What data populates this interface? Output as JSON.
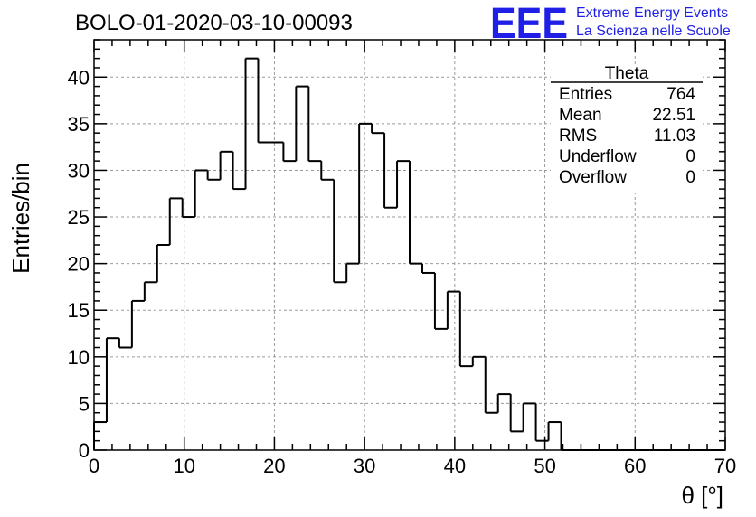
{
  "header": {
    "run_title": "BOLO-01-2020-03-10-00093",
    "logo_text": "EEE",
    "logo_line1": "Extreme Energy Events",
    "logo_line2": "La Scienza nelle Scuole",
    "logo_color": "#1f1fe6"
  },
  "stats": {
    "title": "Theta",
    "rows": [
      {
        "label": "Entries",
        "value": "764"
      },
      {
        "label": "Mean",
        "value": "22.51"
      },
      {
        "label": "RMS",
        "value": "11.03"
      },
      {
        "label": "Underflow",
        "value": "0"
      },
      {
        "label": "Overflow",
        "value": "0"
      }
    ]
  },
  "chart_data": {
    "type": "histogram",
    "title": "BOLO-01-2020-03-10-00093",
    "xlabel": "θ [°]",
    "ylabel": "Entries/bin",
    "xlim": [
      0,
      70
    ],
    "ylim": [
      0,
      44
    ],
    "x_ticks": [
      0,
      10,
      20,
      30,
      40,
      50,
      60,
      70
    ],
    "y_ticks": [
      0,
      5,
      10,
      15,
      20,
      25,
      30,
      35,
      40
    ],
    "grid": true,
    "line_color": "#000000",
    "bin_width": 1.4,
    "bin_edges_start": 0,
    "values": [
      3,
      12,
      11,
      16,
      18,
      22,
      27,
      25,
      30,
      29,
      32,
      28,
      42,
      33,
      33,
      31,
      39,
      31,
      29,
      18,
      20,
      35,
      34,
      26,
      31,
      20,
      19,
      13,
      17,
      9,
      10,
      4,
      6,
      2,
      5,
      1,
      3,
      0,
      0,
      0,
      0,
      0,
      0,
      0,
      0,
      0,
      0,
      0,
      0,
      0
    ]
  }
}
